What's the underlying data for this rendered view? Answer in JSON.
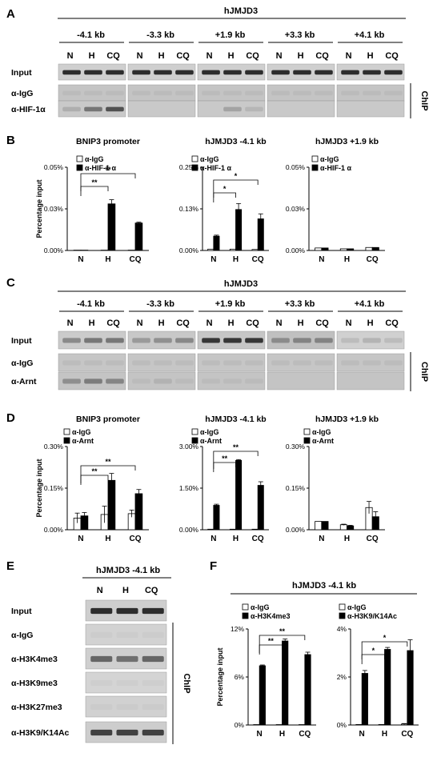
{
  "panels": {
    "A": {
      "letter": "A",
      "header": "hJMJD3",
      "regions": [
        "-4.1 kb",
        "-3.3 kb",
        "+1.9 kb",
        "+3.3 kb",
        "+4.1 kb"
      ],
      "lanes": [
        "N",
        "H",
        "CQ"
      ],
      "rows": [
        "Input",
        "α-IgG",
        "α-HIF-1α"
      ],
      "side_label": "ChIP"
    },
    "C": {
      "letter": "C",
      "header": "hJMJD3",
      "regions": [
        "-4.1 kb",
        "-3.3 kb",
        "+1.9 kb",
        "+3.3 kb",
        "+4.1 kb"
      ],
      "lanes": [
        "N",
        "H",
        "CQ"
      ],
      "rows": [
        "Input",
        "α-IgG",
        "α-Arnt"
      ],
      "side_label": "ChIP"
    },
    "E": {
      "letter": "E",
      "header": "hJMJD3 -4.1 kb",
      "lanes": [
        "N",
        "H",
        "CQ"
      ],
      "rows": [
        "Input",
        "α-IgG",
        "α-H3K4me3",
        "α-H3K9me3",
        "α-H3K27me3",
        "α-H3K9/K14Ac"
      ],
      "side_label": "ChIP"
    },
    "B_letter": "B",
    "D_letter": "D",
    "F_letter": "F",
    "F_header": "hJMJD3 -4.1 kb"
  },
  "chart_data": [
    {
      "id": "B1",
      "type": "bar",
      "title": "BNIP3 promoter",
      "categories": [
        "N",
        "H",
        "CQ"
      ],
      "ylabel": "Percentage input",
      "yticks": [
        "0.00%",
        "0.03%",
        "0.05%"
      ],
      "ylim": [
        0,
        0.05
      ],
      "series": [
        {
          "name": "α-IgG",
          "color": "#ffffff",
          "values": [
            0.0002,
            0.0002,
            0.0002
          ],
          "errors": [
            0,
            0,
            0
          ]
        },
        {
          "name": "α-HIF-1 α",
          "color": "#000000",
          "values": [
            0.0002,
            0.028,
            0.0165
          ],
          "errors": [
            0,
            0.0025,
            0.0005
          ]
        }
      ],
      "significance": [
        {
          "from": 0,
          "to": 1,
          "label": "**"
        },
        {
          "from": 0,
          "to": 2,
          "label": "**"
        }
      ]
    },
    {
      "id": "B2",
      "type": "bar",
      "title": "hJMJD3 -4.1 kb",
      "categories": [
        "N",
        "H",
        "CQ"
      ],
      "ylabel": "",
      "yticks": [
        "0.00%",
        "0.13%",
        "0.25%"
      ],
      "ylim": [
        0,
        0.25
      ],
      "series": [
        {
          "name": "α-IgG",
          "color": "#ffffff",
          "values": [
            0.004,
            0.004,
            0.003
          ],
          "errors": [
            0,
            0,
            0
          ]
        },
        {
          "name": "α-HIF-1 α",
          "color": "#000000",
          "values": [
            0.043,
            0.123,
            0.095
          ],
          "errors": [
            0.003,
            0.018,
            0.015
          ]
        }
      ],
      "significance": [
        {
          "from": 0,
          "to": 1,
          "label": "*"
        },
        {
          "from": 0,
          "to": 2,
          "label": "*"
        }
      ]
    },
    {
      "id": "B3",
      "type": "bar",
      "title": "hJMJD3 +1.9 kb",
      "categories": [
        "N",
        "H",
        "CQ"
      ],
      "ylabel": "",
      "yticks": [
        "0.00%",
        "0.03%",
        "0.05%"
      ],
      "ylim": [
        0,
        0.05
      ],
      "series": [
        {
          "name": "α-IgG",
          "color": "#ffffff",
          "values": [
            0.0015,
            0.001,
            0.0018
          ],
          "errors": [
            0,
            0,
            0
          ]
        },
        {
          "name": "α-HIF-1 α",
          "color": "#000000",
          "values": [
            0.0015,
            0.001,
            0.0018
          ],
          "errors": [
            0,
            0,
            0
          ]
        }
      ],
      "significance": []
    },
    {
      "id": "D1",
      "type": "bar",
      "title": "BNIP3 promoter",
      "categories": [
        "N",
        "H",
        "CQ"
      ],
      "ylabel": "Percentage input",
      "yticks": [
        "0.00%",
        "0.15%",
        "0.30%"
      ],
      "ylim": [
        0,
        0.3
      ],
      "series": [
        {
          "name": "α-IgG",
          "color": "#ffffff",
          "values": [
            0.042,
            0.055,
            0.058
          ],
          "errors": [
            0.018,
            0.03,
            0.013
          ]
        },
        {
          "name": "α-Arnt",
          "color": "#000000",
          "values": [
            0.05,
            0.178,
            0.13
          ],
          "errors": [
            0.012,
            0.025,
            0.015
          ]
        }
      ],
      "significance": [
        {
          "from": 0,
          "to": 1,
          "label": "**"
        },
        {
          "from": 0,
          "to": 2,
          "label": "**"
        }
      ]
    },
    {
      "id": "D2",
      "type": "bar",
      "title": "hJMJD3 -4.1 kb",
      "categories": [
        "N",
        "H",
        "CQ"
      ],
      "ylabel": "",
      "yticks": [
        "0.00%",
        "1.50%",
        "3.00%"
      ],
      "ylim": [
        0,
        3.0
      ],
      "series": [
        {
          "name": "α-IgG",
          "color": "#ffffff",
          "values": [
            0.02,
            0.02,
            0.02
          ],
          "errors": [
            0,
            0,
            0
          ]
        },
        {
          "name": "α-Arnt",
          "color": "#000000",
          "values": [
            0.88,
            2.5,
            1.6
          ],
          "errors": [
            0.04,
            0.03,
            0.13
          ]
        }
      ],
      "significance": [
        {
          "from": 0,
          "to": 1,
          "label": "**"
        },
        {
          "from": 0,
          "to": 2,
          "label": "**"
        }
      ]
    },
    {
      "id": "D3",
      "type": "bar",
      "title": "hJMJD3 +1.9 kb",
      "categories": [
        "N",
        "H",
        "CQ"
      ],
      "ylabel": "",
      "yticks": [
        "0.00%",
        "0.15%",
        "0.30%"
      ],
      "ylim": [
        0,
        0.3
      ],
      "series": [
        {
          "name": "α-IgG",
          "color": "#ffffff",
          "values": [
            0.03,
            0.018,
            0.08
          ],
          "errors": [
            0,
            0.002,
            0.022
          ]
        },
        {
          "name": "α-Arnt",
          "color": "#000000",
          "values": [
            0.03,
            0.014,
            0.047
          ],
          "errors": [
            0,
            0.002,
            0.018
          ]
        }
      ],
      "significance": []
    },
    {
      "id": "F1",
      "type": "bar",
      "title": "",
      "categories": [
        "N",
        "H",
        "CQ"
      ],
      "ylabel": "Percentage input",
      "yticks": [
        "0%",
        "6%",
        "12%"
      ],
      "ylim": [
        0,
        12
      ],
      "series": [
        {
          "name": "α-IgG",
          "color": "#ffffff",
          "values": [
            0.05,
            0.05,
            0.05
          ],
          "errors": [
            0,
            0,
            0
          ]
        },
        {
          "name": "α-H3K4me3",
          "color": "#000000",
          "values": [
            7.4,
            10.5,
            8.8
          ],
          "errors": [
            0.1,
            0.25,
            0.3
          ]
        }
      ],
      "significance": [
        {
          "from": 0,
          "to": 1,
          "label": "**"
        },
        {
          "from": 0,
          "to": 2,
          "label": "**"
        }
      ]
    },
    {
      "id": "F2",
      "type": "bar",
      "title": "",
      "categories": [
        "N",
        "H",
        "CQ"
      ],
      "ylabel": "",
      "yticks": [
        "0%",
        "2%",
        "4%"
      ],
      "ylim": [
        0,
        4
      ],
      "series": [
        {
          "name": "α-IgG",
          "color": "#ffffff",
          "values": [
            0.02,
            0.02,
            0.04
          ],
          "errors": [
            0,
            0,
            0.02
          ]
        },
        {
          "name": "α-H3K9/K14Ac",
          "color": "#000000",
          "values": [
            2.15,
            3.15,
            3.1
          ],
          "errors": [
            0.12,
            0.08,
            0.45
          ]
        }
      ],
      "significance": [
        {
          "from": 0,
          "to": 1,
          "label": "*"
        },
        {
          "from": 0,
          "to": 2,
          "label": "*"
        }
      ]
    }
  ]
}
